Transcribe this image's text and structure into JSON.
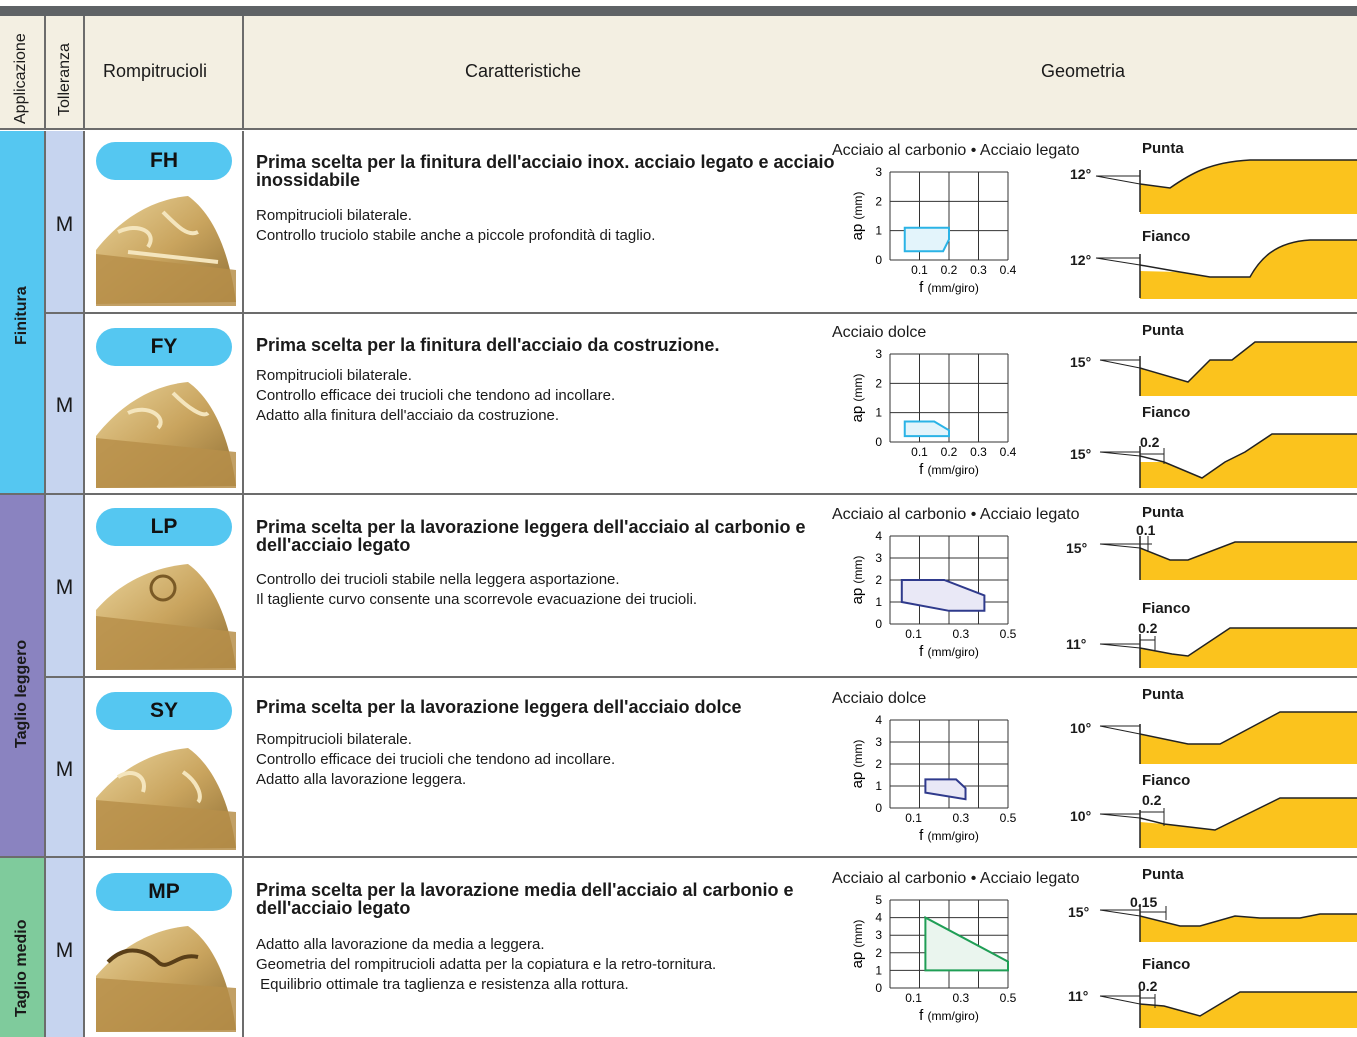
{
  "header": {
    "applicazione": "Applicazione",
    "tolleranza": "Tolleranza",
    "rompitrucioli": "Rompitrucioli",
    "caratteristiche": "Caratteristiche",
    "geometria": "Geometria"
  },
  "groups": [
    {
      "label": "Finitura",
      "color": "#55c7f1"
    },
    {
      "label": "Taglio leggero",
      "color": "#8a83c0"
    },
    {
      "label": "Taglio medio",
      "color": "#7fcb9c"
    }
  ],
  "common": {
    "tolerance": "M",
    "f_label": "f",
    "f_unit": "(mm/giro)",
    "ap_label": "ap",
    "ap_unit": "(mm)",
    "punta": "Punta",
    "fianco": "Fianco"
  },
  "rows": [
    {
      "code": "FH",
      "title": "Prima scelta per la finitura dell'acciaio inox. acciaio legato e acciaio inossidabile",
      "desc": [
        "Rompitrucioli bilaterale.",
        "Controllo truciolo stabile anche a piccole profondità di taglio."
      ],
      "chart_title": "Acciaio al carbonio • Acciaio legato",
      "x_ticks": [
        "0.1",
        "0.2",
        "0.3",
        "0.4"
      ],
      "y_ticks": [
        "0",
        "1",
        "2",
        "3"
      ],
      "punta_angle": "12°",
      "fianco_angle": "12°",
      "punta_dim": "",
      "fianco_dim": ""
    },
    {
      "code": "FY",
      "title": "Prima scelta per la finitura dell'acciaio da costruzione.",
      "desc": [
        "Rompitrucioli bilaterale.",
        "Controllo efficace dei trucioli che tendono ad incollare.",
        "Adatto alla finitura dell'acciaio da costruzione."
      ],
      "chart_title": "Acciaio dolce",
      "x_ticks": [
        "0.1",
        "0.2",
        "0.3",
        "0.4"
      ],
      "y_ticks": [
        "0",
        "1",
        "2",
        "3"
      ],
      "punta_angle": "15°",
      "fianco_angle": "15°",
      "punta_dim": "",
      "fianco_dim": "0.2"
    },
    {
      "code": "LP",
      "title": "Prima scelta per la lavorazione leggera dell'acciaio al carbonio e dell'acciaio legato",
      "desc": [
        "Controllo dei trucioli stabile nella leggera asportazione.",
        "Il tagliente curvo consente una scorrevole evacuazione dei trucioli."
      ],
      "chart_title": "Acciaio al carbonio • Acciaio legato",
      "x_ticks": [
        "0.1",
        "0.3",
        "0.5"
      ],
      "y_ticks": [
        "0",
        "1",
        "2",
        "3",
        "4"
      ],
      "punta_angle": "15°",
      "fianco_angle": "11°",
      "punta_dim": "0.1",
      "fianco_dim": "0.2"
    },
    {
      "code": "SY",
      "title": "Prima scelta per la lavorazione leggera dell'acciaio dolce",
      "desc": [
        "Rompitrucioli bilaterale.",
        "Controllo efficace dei trucioli che tendono ad incollare.",
        "Adatto alla lavorazione leggera."
      ],
      "chart_title": "Acciaio dolce",
      "x_ticks": [
        "0.1",
        "0.3",
        "0.5"
      ],
      "y_ticks": [
        "0",
        "1",
        "2",
        "3",
        "4"
      ],
      "punta_angle": "10°",
      "fianco_angle": "10°",
      "punta_dim": "",
      "fianco_dim": "0.2"
    },
    {
      "code": "MP",
      "title": "Prima scelta per la lavorazione media dell'acciaio al carbonio e dell'acciaio legato",
      "desc": [
        "Adatto alla lavorazione da media a leggera.",
        "Geometria del rompitrucioli adatta per la copiatura e la retro-tornitura.",
        " Equilibrio ottimale tra taglienza e resistenza alla rottura."
      ],
      "chart_title": "Acciaio al carbonio • Acciaio legato",
      "x_ticks": [
        "0.1",
        "0.3",
        "0.5"
      ],
      "y_ticks": [
        "0",
        "1",
        "2",
        "3",
        "4",
        "5"
      ],
      "punta_angle": "15°",
      "fianco_angle": "11°",
      "punta_dim": "0.15",
      "fianco_dim": "0.2"
    }
  ],
  "chart_data": [
    {
      "type": "area",
      "title": "Acciaio al carbonio • Acciaio legato",
      "xlabel": "f (mm/giro)",
      "ylabel": "ap (mm)",
      "xlim": [
        0,
        0.4
      ],
      "ylim": [
        0,
        3
      ],
      "series": [
        {
          "x": [
            0.05,
            0.18,
            0.2,
            0.2,
            0.05
          ],
          "y": [
            0.3,
            0.3,
            0.7,
            1.1,
            1.1
          ]
        }
      ],
      "color": "#2bb3e6",
      "fill": "#e3f4fb"
    },
    {
      "type": "area",
      "title": "Acciaio dolce",
      "xlabel": "f (mm/giro)",
      "ylabel": "ap (mm)",
      "xlim": [
        0,
        0.4
      ],
      "ylim": [
        0,
        3
      ],
      "series": [
        {
          "x": [
            0.05,
            0.2,
            0.2,
            0.15,
            0.05
          ],
          "y": [
            0.2,
            0.2,
            0.4,
            0.7,
            0.7
          ]
        }
      ],
      "color": "#2bb3e6",
      "fill": "#e3f4fb"
    },
    {
      "type": "area",
      "title": "Acciaio al carbonio • Acciaio legato",
      "xlabel": "f (mm/giro)",
      "ylabel": "ap (mm)",
      "xlim": [
        0,
        0.5
      ],
      "ylim": [
        0,
        4
      ],
      "series": [
        {
          "x": [
            0.05,
            0.05,
            0.23,
            0.4,
            0.4,
            0.25
          ],
          "y": [
            1.0,
            2.0,
            2.0,
            1.3,
            0.6,
            0.6
          ]
        }
      ],
      "color": "#2f3a8c",
      "fill": "#e9e8f6"
    },
    {
      "type": "area",
      "title": "Acciaio dolce",
      "xlabel": "f (mm/giro)",
      "ylabel": "ap (mm)",
      "xlim": [
        0,
        0.5
      ],
      "ylim": [
        0,
        4
      ],
      "series": [
        {
          "x": [
            0.15,
            0.15,
            0.28,
            0.32,
            0.32
          ],
          "y": [
            0.7,
            1.3,
            1.3,
            0.9,
            0.4
          ]
        }
      ],
      "color": "#2f3a8c",
      "fill": "#e9e8f6"
    },
    {
      "type": "area",
      "title": "Acciaio al carbonio • Acciaio legato",
      "xlabel": "f (mm/giro)",
      "ylabel": "ap (mm)",
      "xlim": [
        0,
        0.5
      ],
      "ylim": [
        0,
        5
      ],
      "series": [
        {
          "x": [
            0.15,
            0.15,
            0.5,
            0.5,
            0.2
          ],
          "y": [
            1.0,
            4.0,
            1.5,
            1.0,
            1.0
          ]
        }
      ],
      "color": "#1f9e55",
      "fill": "#eaf5ee"
    }
  ]
}
